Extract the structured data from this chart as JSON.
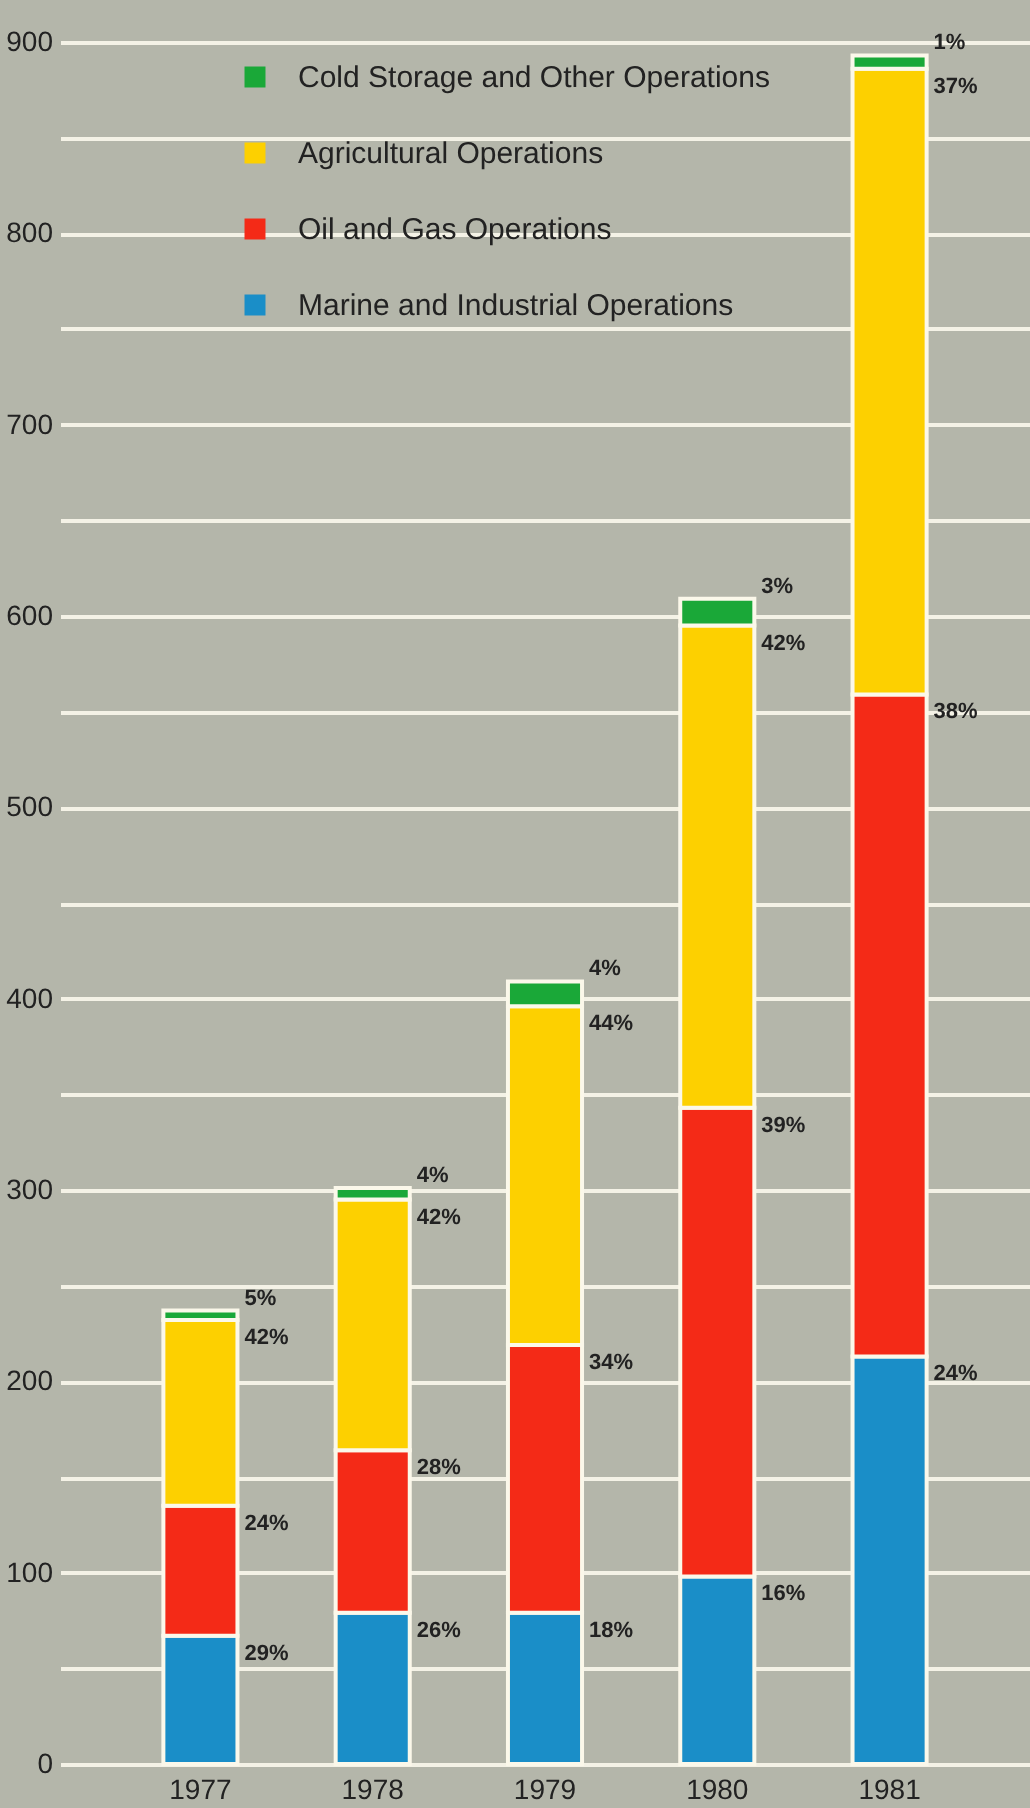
{
  "chart_data": {
    "type": "bar",
    "stacked": true,
    "categories": [
      "1977",
      "1978",
      "1979",
      "1980",
      "1981"
    ],
    "series": [
      {
        "name": "Marine and Industrial Operations",
        "color": "#1a8ec8",
        "values": [
          67,
          79,
          79,
          98,
          213
        ]
      },
      {
        "name": "Oil and Gas Operations",
        "color": "#f42a17",
        "values": [
          68,
          85,
          140,
          245,
          346
        ]
      },
      {
        "name": "Agricultural Operations",
        "color": "#fdd000",
        "values": [
          97,
          131,
          177,
          252,
          327
        ]
      },
      {
        "name": "Cold Storage and Other Operations",
        "color": "#1aa838",
        "values": [
          5,
          6,
          13,
          14,
          7
        ]
      }
    ],
    "annotations": [
      {
        "text": "29%",
        "x": "1977",
        "y": 67
      },
      {
        "text": "24%",
        "x": "1977",
        "y": 135
      },
      {
        "text": "42%",
        "x": "1977",
        "y": 232
      },
      {
        "text": "5%",
        "x": "1977",
        "y": 237
      },
      {
        "text": "26%",
        "x": "1978",
        "y": 79
      },
      {
        "text": "28%",
        "x": "1978",
        "y": 164
      },
      {
        "text": "42%",
        "x": "1978",
        "y": 295
      },
      {
        "text": "4%",
        "x": "1978",
        "y": 301
      },
      {
        "text": "18%",
        "x": "1979",
        "y": 79
      },
      {
        "text": "34%",
        "x": "1979",
        "y": 219
      },
      {
        "text": "44%",
        "x": "1979",
        "y": 396
      },
      {
        "text": "4%",
        "x": "1979",
        "y": 409
      },
      {
        "text": "16%",
        "x": "1980",
        "y": 98
      },
      {
        "text": "39%",
        "x": "1980",
        "y": 343
      },
      {
        "text": "42%",
        "x": "1980",
        "y": 595
      },
      {
        "text": "3%",
        "x": "1980",
        "y": 609
      },
      {
        "text": "24%",
        "x": "1981",
        "y": 213
      },
      {
        "text": "38%",
        "x": "1981",
        "y": 559
      },
      {
        "text": "37%",
        "x": "1981",
        "y": 886
      },
      {
        "text": "1%",
        "x": "1981",
        "y": 893
      }
    ],
    "ylim": [
      0,
      900
    ],
    "yticks": [
      0,
      {
        "value": 50,
        "label": null
      },
      100,
      {
        "value": 150,
        "label": null
      },
      200,
      {
        "value": 250,
        "label": null
      },
      300,
      {
        "value": 350,
        "label": null
      },
      400,
      {
        "value": 450,
        "label": null
      },
      500,
      {
        "value": 550,
        "label": null
      },
      600,
      {
        "value": 650,
        "label": null
      },
      700,
      {
        "value": 750,
        "label": null
      },
      800,
      {
        "value": 850,
        "label": null
      },
      900
    ],
    "grid": true,
    "legend": "top left"
  }
}
